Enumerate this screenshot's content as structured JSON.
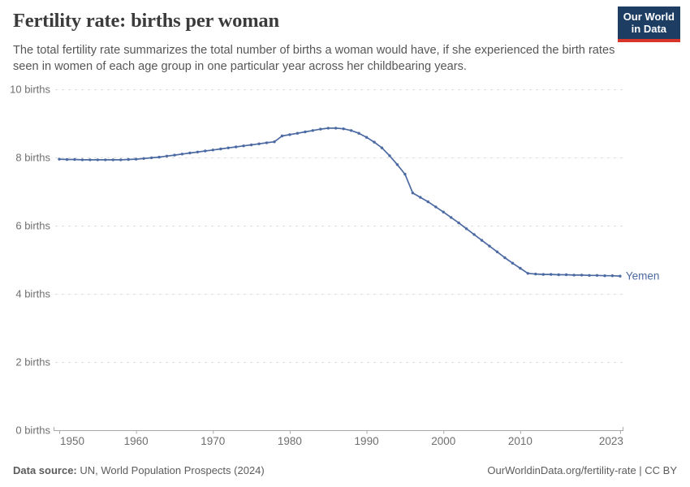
{
  "header": {
    "title": "Fertility rate: births per woman",
    "subtitle": "The total fertility rate summarizes the total number of births a woman would have, if she experienced the birth rates seen in women of each age group in one particular year across her childbearing years.",
    "logo_line1": "Our World",
    "logo_line2": "in Data"
  },
  "footer": {
    "source_label": "Data source:",
    "source_text": " UN, World Population Prospects (2024)",
    "rights": "OurWorldinData.org/fertility-rate | CC BY"
  },
  "colors": {
    "line": "#4c6aa2",
    "entity_label": "#4c6aa2",
    "grid_line": "#dcdcdc",
    "axis_line": "#a8a8a8",
    "axis_text": "#6e6e6e",
    "title_text": "#3b3b3b",
    "subtitle_text": "#565656",
    "footer_text": "#5c5c5c",
    "logo_bg": "#1d3d63",
    "logo_stripe": "#d8352a"
  },
  "chart_data": {
    "type": "line",
    "title": "Fertility rate: births per woman",
    "entity": "Yemen",
    "unit": "births",
    "xlim": [
      1950,
      2023
    ],
    "ylim": [
      0,
      10
    ],
    "grid": "dashed-horizontal",
    "legend_position": "end-of-line-label",
    "x_ticks": [
      1950,
      1960,
      1970,
      1980,
      1990,
      2000,
      2010,
      2023
    ],
    "y_ticks": [
      {
        "value": 0,
        "label": "0 births"
      },
      {
        "value": 2,
        "label": "2 births"
      },
      {
        "value": 4,
        "label": "4 births"
      },
      {
        "value": 6,
        "label": "6 births"
      },
      {
        "value": 8,
        "label": "8 births"
      },
      {
        "value": 10,
        "label": "10 births"
      }
    ],
    "x": [
      1950,
      1951,
      1952,
      1953,
      1954,
      1955,
      1956,
      1957,
      1958,
      1959,
      1960,
      1961,
      1962,
      1963,
      1964,
      1965,
      1966,
      1967,
      1968,
      1969,
      1970,
      1971,
      1972,
      1973,
      1974,
      1975,
      1976,
      1977,
      1978,
      1979,
      1980,
      1981,
      1982,
      1983,
      1984,
      1985,
      1986,
      1987,
      1988,
      1989,
      1990,
      1991,
      1992,
      1993,
      1994,
      1995,
      1996,
      1997,
      1998,
      1999,
      2000,
      2001,
      2002,
      2003,
      2004,
      2005,
      2006,
      2007,
      2008,
      2009,
      2010,
      2011,
      2012,
      2013,
      2014,
      2015,
      2016,
      2017,
      2018,
      2019,
      2020,
      2021,
      2022,
      2023
    ],
    "series": [
      {
        "name": "Yemen",
        "values": [
          7.95,
          7.94,
          7.94,
          7.93,
          7.93,
          7.93,
          7.93,
          7.93,
          7.93,
          7.94,
          7.95,
          7.97,
          7.99,
          8.01,
          8.04,
          8.07,
          8.1,
          8.13,
          8.16,
          8.19,
          8.22,
          8.25,
          8.28,
          8.31,
          8.34,
          8.37,
          8.4,
          8.43,
          8.46,
          8.63,
          8.67,
          8.71,
          8.75,
          8.79,
          8.83,
          8.86,
          8.86,
          8.84,
          8.79,
          8.71,
          8.59,
          8.45,
          8.28,
          8.05,
          7.79,
          7.51,
          6.96,
          6.83,
          6.7,
          6.55,
          6.4,
          6.24,
          6.08,
          5.91,
          5.74,
          5.57,
          5.4,
          5.23,
          5.06,
          4.9,
          4.75,
          4.6,
          4.58,
          4.57,
          4.57,
          4.56,
          4.56,
          4.55,
          4.55,
          4.54,
          4.54,
          4.53,
          4.53,
          4.52
        ]
      }
    ]
  }
}
